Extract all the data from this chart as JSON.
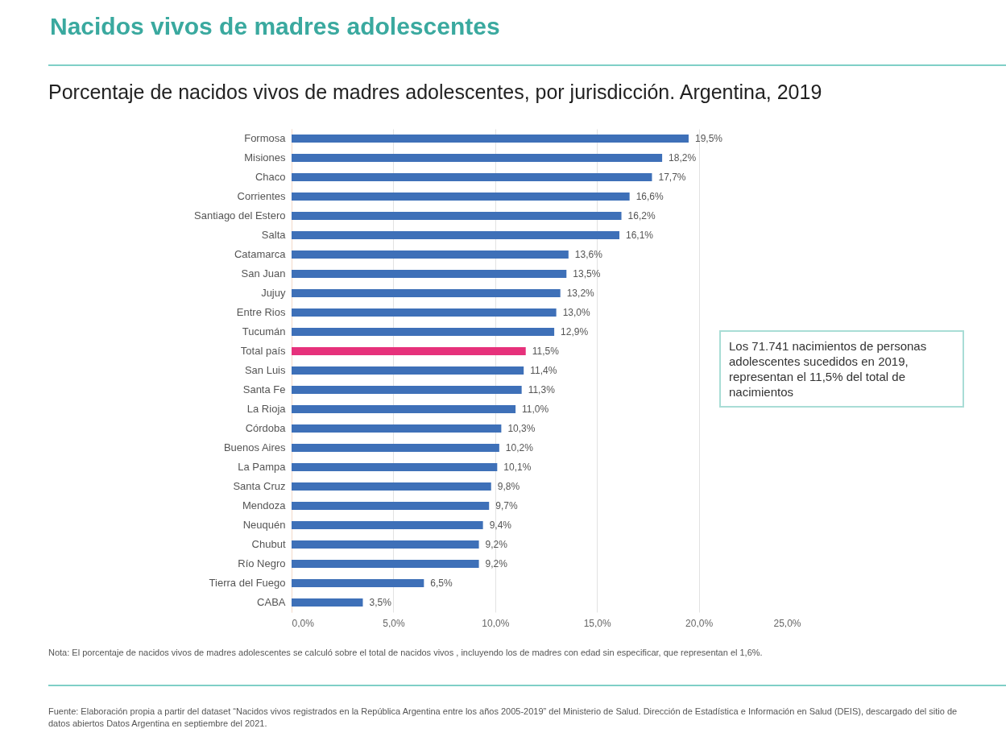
{
  "chart_data": {
    "type": "bar",
    "orientation": "horizontal",
    "title": "Nacidos vivos de madres adolescentes",
    "subtitle": "Porcentaje de nacidos vivos de madres adolescentes, por jurisdicción. Argentina, 2019",
    "categories": [
      "Formosa",
      "Misiones",
      "Chaco",
      "Corrientes",
      "Santiago del Estero",
      "Salta",
      "Catamarca",
      "San Juan",
      "Jujuy",
      "Entre Rios",
      "Tucumán",
      "Total país",
      "San Luis",
      "Santa Fe",
      "La Rioja",
      "Córdoba",
      "Buenos Aires",
      "La Pampa",
      "Santa Cruz",
      "Mendoza",
      "Neuquén",
      "Chubut",
      "Río Negro",
      "Tierra del Fuego",
      "CABA"
    ],
    "values": [
      19.5,
      18.2,
      17.7,
      16.6,
      16.2,
      16.1,
      13.6,
      13.5,
      13.2,
      13.0,
      12.9,
      11.5,
      11.4,
      11.3,
      11.0,
      10.3,
      10.2,
      10.1,
      9.8,
      9.7,
      9.4,
      9.2,
      9.2,
      6.5,
      3.5
    ],
    "value_labels": [
      "19,5%",
      "18,2%",
      "17,7%",
      "16,6%",
      "16,2%",
      "16,1%",
      "13,6%",
      "13,5%",
      "13,2%",
      "13,0%",
      "12,9%",
      "11,5%",
      "11,4%",
      "11,3%",
      "11,0%",
      "10,3%",
      "10,2%",
      "10,1%",
      "9,8%",
      "9,7%",
      "9,4%",
      "9,2%",
      "9,2%",
      "6,5%",
      "3,5%"
    ],
    "colors": [
      "#3e70b8",
      "#3e70b8",
      "#3e70b8",
      "#3e70b8",
      "#3e70b8",
      "#3e70b8",
      "#3e70b8",
      "#3e70b8",
      "#3e70b8",
      "#3e70b8",
      "#3e70b8",
      "#e6317b",
      "#3e70b8",
      "#3e70b8",
      "#3e70b8",
      "#3e70b8",
      "#3e70b8",
      "#3e70b8",
      "#3e70b8",
      "#3e70b8",
      "#3e70b8",
      "#3e70b8",
      "#3e70b8",
      "#3e70b8",
      "#3e70b8"
    ],
    "xlim": [
      0,
      25
    ],
    "xticks": [
      {
        "value": 0,
        "label": "0,0%"
      },
      {
        "value": 5,
        "label": "5,0%"
      },
      {
        "value": 10,
        "label": "10,0%"
      },
      {
        "value": 15,
        "label": "15,0%"
      },
      {
        "value": 20,
        "label": "20,0%"
      },
      {
        "value": 25,
        "label": "25,0%"
      }
    ],
    "grid": "x",
    "annotations": [
      "Los 71.741 nacimientos de personas adolescentes sucedidos en 2019, representan el 11,5% del total de nacimientos",
      "Nota: El porcentaje de nacidos vivos de madres adolescentes se calculó sobre el total de nacidos vivos , incluyendo los de madres con edad sin especificar, que representan el 1,6%.",
      "Fuente:  Elaboración propia  a partir del dataset “Nacidos vivos registrados en la República Argentina entre los años 2005-2019”  del Ministerio de Salud. Dirección de Estadística e Información en Salud (DEIS), descargado del sitio de datos abiertos  Datos Argentina  en septiembre del 2021."
    ]
  }
}
